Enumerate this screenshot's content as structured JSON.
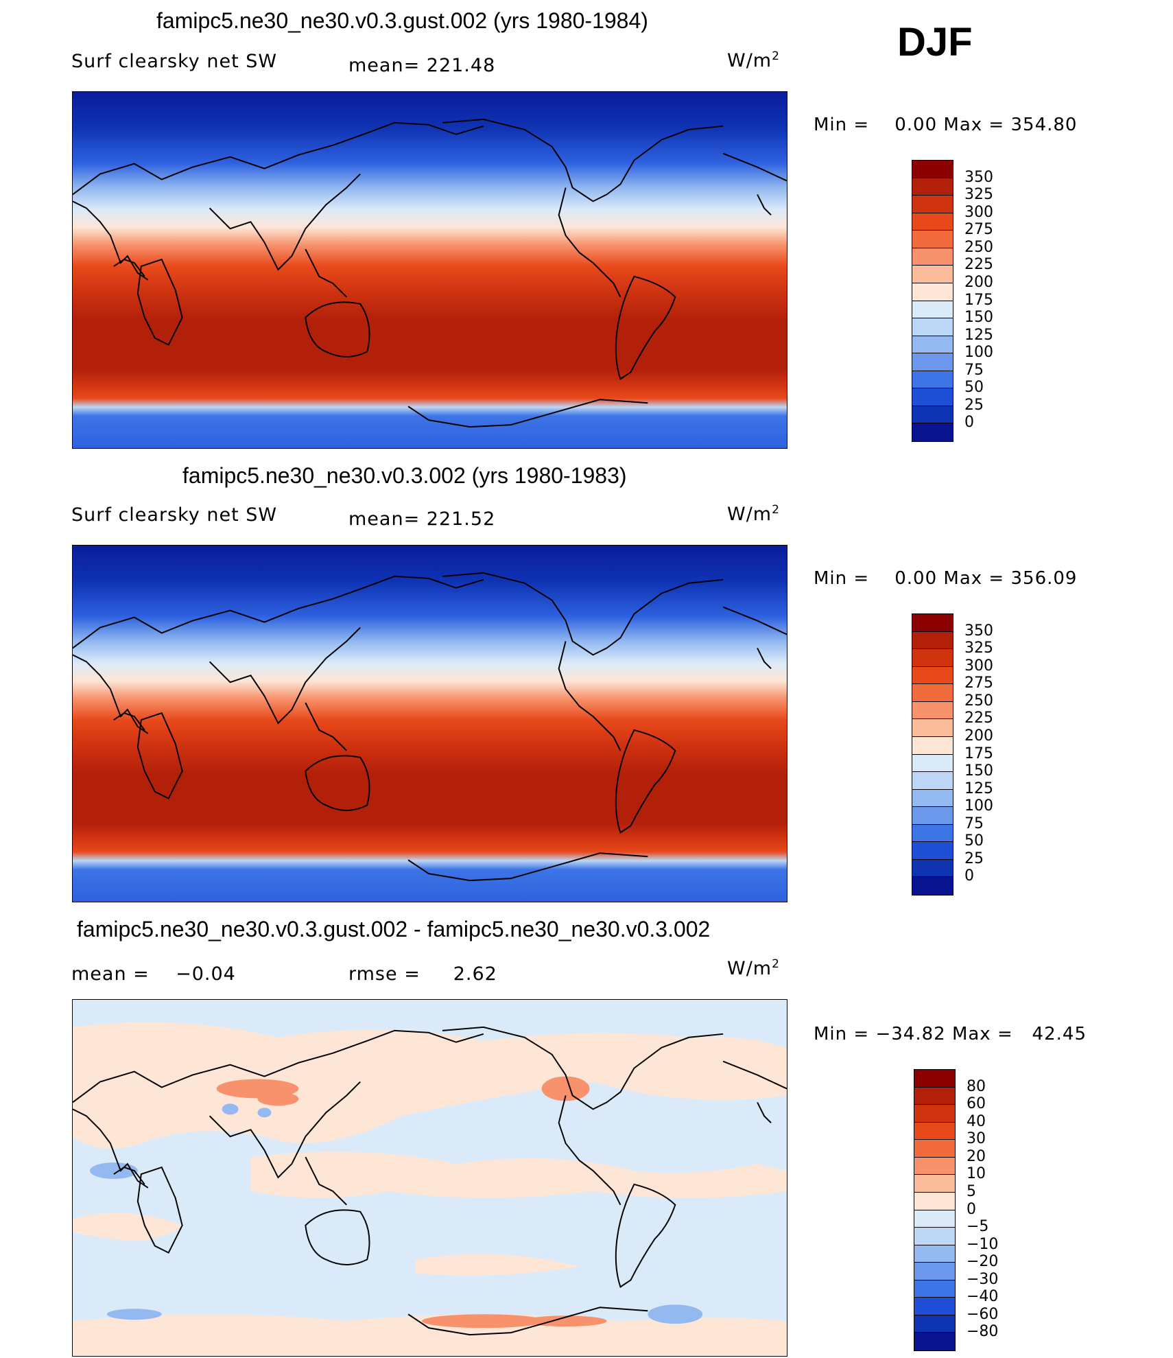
{
  "season": "DJF",
  "units_base": "W/m",
  "units_exp": "2",
  "panels": [
    {
      "title": "famipc5.ne30_ne30.v0.3.gust.002 (yrs 1980-1984)",
      "left_label": "Surf clearsky net SW",
      "stat_label": "mean= 221.48",
      "min_label": "Min =",
      "min_value": "0.00",
      "max_label": "Max =",
      "max_value": "354.80"
    },
    {
      "title": "famipc5.ne30_ne30.v0.3.002 (yrs 1980-1983)",
      "left_label": "Surf clearsky net SW",
      "stat_label": "mean= 221.52",
      "min_label": "Min =",
      "min_value": "0.00",
      "max_label": "Max =",
      "max_value": "356.09"
    },
    {
      "title": "famipc5.ne30_ne30.v0.3.gust.002 - famipc5.ne30_ne30.v0.3.002",
      "left_label": "mean =    −0.04",
      "stat_label": "rmse =     2.62",
      "min_label": "Min =",
      "min_value": "−34.82",
      "max_label": "Max =",
      "max_value": "42.45"
    }
  ],
  "colorbars": {
    "absolute": {
      "labels": [
        "350",
        "325",
        "300",
        "275",
        "250",
        "225",
        "200",
        "175",
        "150",
        "125",
        "100",
        "75",
        "50",
        "25",
        "0"
      ],
      "colors": [
        "#8b0000",
        "#b3200a",
        "#cf3310",
        "#e8491b",
        "#f26b3c",
        "#f7926c",
        "#fbbc9c",
        "#fde6d6",
        "#dbeaf8",
        "#bcd6f5",
        "#93b9f0",
        "#6b98ea",
        "#3d74e6",
        "#1f4fd6",
        "#0e33b3",
        "#08138f"
      ]
    },
    "difference": {
      "labels": [
        "80",
        "60",
        "40",
        "30",
        "20",
        "10",
        "5",
        "0",
        "−5",
        "−10",
        "−20",
        "−30",
        "−40",
        "−60",
        "−80"
      ],
      "colors": [
        "#8b0000",
        "#b3200a",
        "#cf3310",
        "#e8491b",
        "#f26b3c",
        "#f7926c",
        "#fbbc9c",
        "#fde6d6",
        "#dbeaf8",
        "#bcd6f5",
        "#93b9f0",
        "#6b98ea",
        "#3d74e6",
        "#1f4fd6",
        "#0e33b3",
        "#08138f"
      ]
    }
  }
}
